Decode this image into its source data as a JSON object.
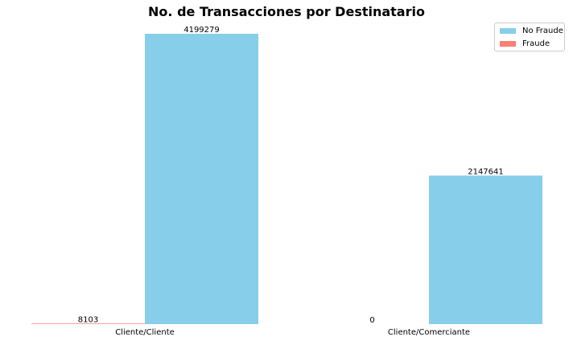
{
  "chart_data": {
    "type": "bar",
    "title": "No. de Transacciones por Destinatario",
    "categories": [
      "Cliente/Cliente",
      "Cliente/Comerciante"
    ],
    "series": [
      {
        "name": "Fraude",
        "color": "#fa8072",
        "values": [
          8103,
          0
        ],
        "labels": [
          "8103",
          "0"
        ]
      },
      {
        "name": "No Fraude",
        "color": "#87ceeb",
        "values": [
          4199279,
          2147641
        ],
        "labels": [
          "4199279",
          "2147641"
        ]
      }
    ],
    "ylim": [
      0,
      4199279
    ],
    "xlabel": "",
    "ylabel": "",
    "grid": false,
    "legend": {
      "position": "top-right",
      "entries": [
        "No Fraude",
        "Fraude"
      ]
    }
  }
}
